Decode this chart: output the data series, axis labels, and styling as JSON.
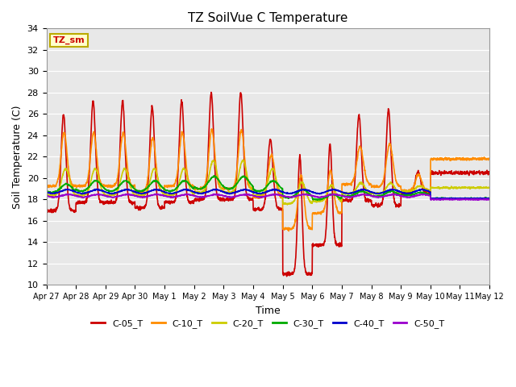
{
  "title": "TZ SoilVue C Temperature",
  "ylabel": "Soil Temperature (C)",
  "xlabel": "Time",
  "legend_label": "TZ_sm",
  "bg_color": "#e8e8e8",
  "fig_color": "#ffffff",
  "ylim": [
    10,
    34
  ],
  "xlim": [
    0,
    15
  ],
  "series_names": [
    "C-05_T",
    "C-10_T",
    "C-20_T",
    "C-30_T",
    "C-40_T",
    "C-50_T"
  ],
  "series_colors": {
    "C-05_T": "#cc0000",
    "C-10_T": "#ff8c00",
    "C-20_T": "#cccc00",
    "C-30_T": "#00aa00",
    "C-40_T": "#0000cc",
    "C-50_T": "#9900cc"
  },
  "lw": 1.2,
  "xtick_labels": [
    "Apr 27",
    "Apr 28",
    "Apr 29",
    "Apr 30",
    "May 1",
    "May 2",
    "May 3",
    "May 4",
    "May 5",
    "May 6",
    "May 7",
    "May 8",
    "May 9",
    "May 10",
    "May 11",
    "May 12"
  ],
  "flat_start_day": 13.0,
  "flat_values": {
    "C-05_T": 20.5,
    "C-10_T": 21.8,
    "C-20_T": 19.1,
    "C-30_T": 18.1,
    "C-40_T": 18.1,
    "C-50_T": 18.0
  },
  "yticks": [
    10,
    12,
    14,
    16,
    18,
    20,
    22,
    24,
    26,
    28,
    30,
    32,
    34
  ],
  "title_fontsize": 11,
  "label_fontsize": 9,
  "tick_fontsize": 8
}
